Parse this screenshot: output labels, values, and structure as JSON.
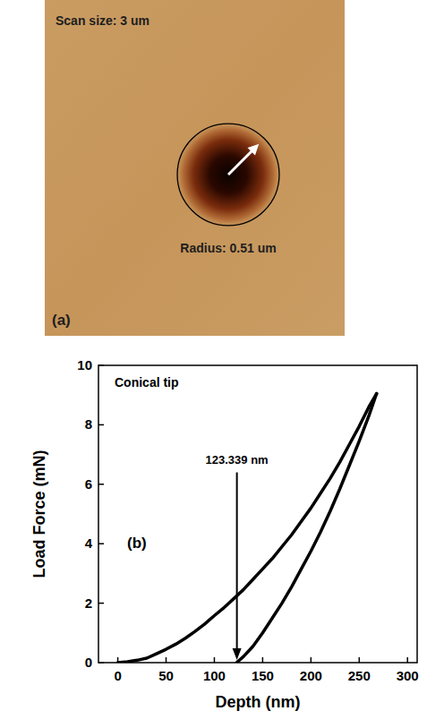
{
  "image_panel": {
    "panel_label": "(a)",
    "scan_size_label": "Scan size: 3 um",
    "scan_size_um": 3,
    "radius_label": "Radius: 0.51 um",
    "radius_um": 0.51
  },
  "chart_data": {
    "type": "line",
    "panel_label": "(b)",
    "xlabel": "Depth (nm)",
    "ylabel": "Load Force (mN)",
    "annotations": [
      {
        "text": "Conical tip"
      },
      {
        "text": "123.339 nm",
        "x": 123.339
      }
    ],
    "xlim": [
      -20,
      310
    ],
    "ylim": [
      0,
      10
    ],
    "xticks": [
      0,
      50,
      100,
      150,
      200,
      250,
      300
    ],
    "yticks": [
      0,
      2,
      4,
      6,
      8,
      10
    ],
    "series": [
      {
        "color": "#000000",
        "line_style": "solid",
        "x": [
          0,
          10,
          20,
          30,
          40,
          50,
          60,
          70,
          80,
          90,
          100,
          110,
          120,
          130,
          140,
          150,
          160,
          170,
          180,
          190,
          200,
          210,
          220,
          230,
          240,
          250,
          260,
          268
        ],
        "values": [
          0,
          0.03,
          0.08,
          0.15,
          0.3,
          0.45,
          0.62,
          0.82,
          1.05,
          1.3,
          1.58,
          1.85,
          2.15,
          2.45,
          2.8,
          3.15,
          3.5,
          3.9,
          4.3,
          4.75,
          5.2,
          5.7,
          6.2,
          6.75,
          7.35,
          7.95,
          8.6,
          9.05
        ]
      },
      {
        "color": "#000000",
        "line_style": "solid",
        "x": [
          268,
          260,
          250,
          240,
          230,
          220,
          210,
          200,
          190,
          180,
          170,
          160,
          150,
          140,
          130,
          123
        ],
        "values": [
          9.05,
          8.3,
          7.45,
          6.65,
          5.85,
          5.1,
          4.4,
          3.75,
          3.15,
          2.55,
          2.0,
          1.5,
          1.0,
          0.55,
          0.2,
          0
        ]
      }
    ]
  }
}
